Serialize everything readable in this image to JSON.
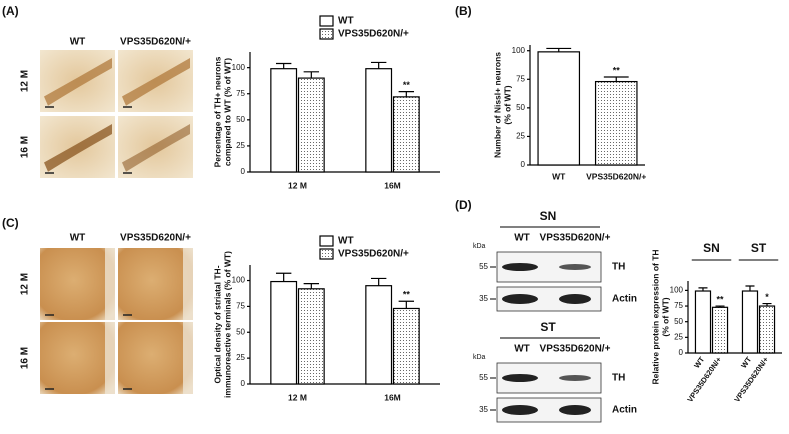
{
  "panels": [
    "(A)",
    "(B)",
    "(C)",
    "(D)"
  ],
  "micrographs": [
    {
      "columns": [
        "WT",
        "VPS35D620N/+"
      ],
      "rows": [
        "12 M",
        "16 M"
      ]
    },
    {
      "columns": [
        "WT",
        "VPS35D620N/+"
      ],
      "rows": [
        "12 M",
        "16 M"
      ]
    }
  ],
  "blots": [
    {
      "title": "SN",
      "columns": [
        "WT",
        "VPS35D620N/+"
      ],
      "unit": "kDa",
      "markers": [
        "55",
        "35"
      ],
      "bands": [
        "TH",
        "Actin"
      ]
    },
    {
      "title": "ST",
      "columns": [
        "WT",
        "VPS35D620N/+"
      ],
      "unit": "kDa",
      "markers": [
        "55",
        "35"
      ],
      "bands": [
        "TH",
        "Actin"
      ]
    }
  ],
  "chart_data": [
    {
      "type": "bar",
      "ylabel": [
        "Percentage of TH+ neurons",
        "compared to WT (% of WT)"
      ],
      "categories": [
        "12 M",
        "16M"
      ],
      "series": [
        {
          "name": "WT",
          "color": "#ffffff",
          "values": [
            99,
            99
          ],
          "errors": [
            5,
            6
          ],
          "significance": [
            null,
            null
          ]
        },
        {
          "name": "VPS35D620N/+",
          "color": "dots",
          "values": [
            90,
            72
          ],
          "errors": [
            6,
            5
          ],
          "significance": [
            null,
            "**"
          ]
        }
      ],
      "ylim": [
        0,
        115
      ],
      "yticks": [
        0,
        25,
        50,
        75,
        100
      ],
      "legend": true
    },
    {
      "type": "bar",
      "ylabel": [
        "Number of Nissl+ neurons",
        "(% of WT)"
      ],
      "categories": [
        "WT",
        "VPS35D620N/+"
      ],
      "values": [
        99,
        73
      ],
      "errors": [
        3,
        4
      ],
      "significance": [
        null,
        "**"
      ],
      "colors": [
        "#ffffff",
        "dots"
      ],
      "ylim": [
        0,
        105
      ],
      "yticks": [
        0,
        25,
        50,
        75,
        100
      ]
    },
    {
      "type": "bar",
      "ylabel": [
        "Optical density of striatal TH-",
        "immunoreactive terminals (% of WT)"
      ],
      "categories": [
        "12 M",
        "16M"
      ],
      "series": [
        {
          "name": "WT",
          "color": "#ffffff",
          "values": [
            99,
            95
          ],
          "errors": [
            8,
            7
          ],
          "significance": [
            null,
            null
          ]
        },
        {
          "name": "VPS35D620N/+",
          "color": "dots",
          "values": [
            92,
            73
          ],
          "errors": [
            5,
            7
          ],
          "significance": [
            null,
            "**"
          ]
        }
      ],
      "ylim": [
        0,
        115
      ],
      "yticks": [
        0,
        25,
        50,
        75,
        100
      ],
      "legend": true
    },
    {
      "type": "bar",
      "ylabel": [
        "Relative protein expression of TH",
        "(% of WT)"
      ],
      "categories": [
        "SN",
        "ST"
      ],
      "series": [
        {
          "name": "WT",
          "color": "#ffffff",
          "values": [
            99,
            99
          ],
          "errors": [
            5,
            8
          ],
          "significance": [
            null,
            null
          ]
        },
        {
          "name": "VPS35D620N/+",
          "color": "dots",
          "values": [
            73,
            75
          ],
          "errors": [
            2,
            4
          ],
          "significance": [
            "**",
            "*"
          ]
        }
      ],
      "ylim": [
        0,
        115
      ],
      "yticks": [
        0,
        25,
        50,
        75,
        100
      ],
      "categories_on_top": true,
      "bar_labels": true
    }
  ]
}
